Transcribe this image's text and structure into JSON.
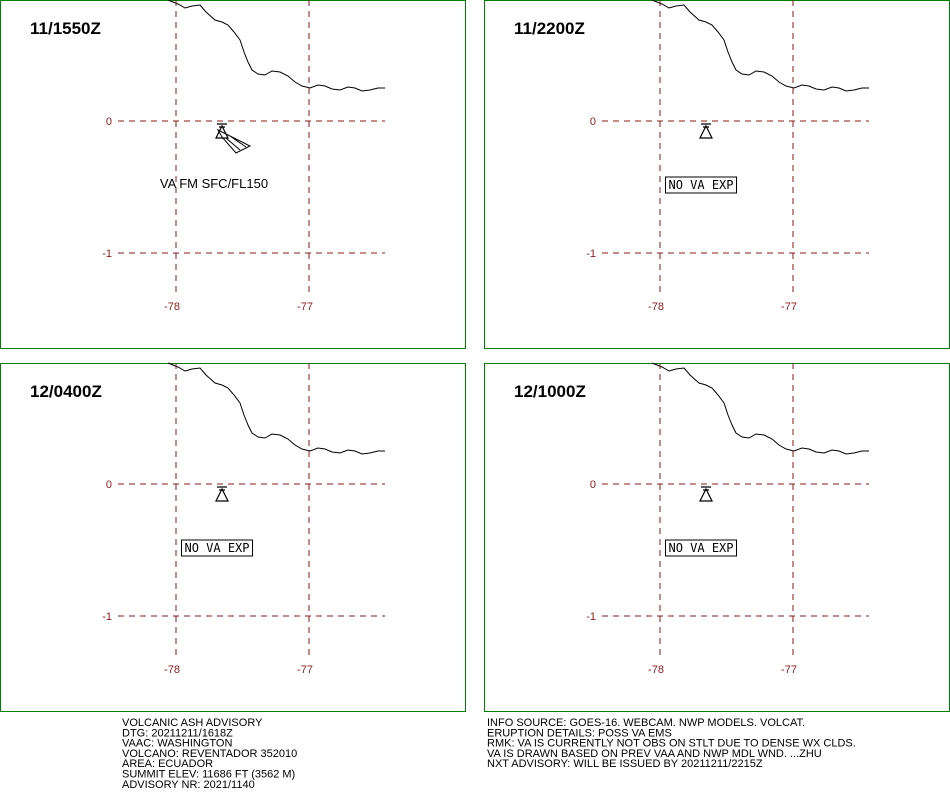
{
  "panels": [
    {
      "time": "11/1550Z",
      "annotation": "VA FM SFC/FL150"
    },
    {
      "time": "11/2200Z",
      "annotation": "NO VA EXP"
    },
    {
      "time": "12/0400Z",
      "annotation": "NO VA EXP"
    },
    {
      "time": "12/1000Z",
      "annotation": "NO VA EXP"
    }
  ],
  "lat_labels": [
    0,
    -1
  ],
  "lon_labels": [
    -78,
    -77
  ],
  "advisory_left": [
    "VOLCANIC ASH ADVISORY",
    "DTG: 20211211/1618Z",
    "VAAC: WASHINGTON",
    "VOLCANO: REVENTADOR 352010",
    "AREA: ECUADOR",
    "SUMMIT ELEV: 11686 FT (3562 M)",
    "ADVISORY NR: 2021/1140"
  ],
  "advisory_right": [
    "INFO SOURCE: GOES-16. WEBCAM. NWP MODELS. VOLCAT.",
    "ERUPTION DETAILS: POSS VA EMS",
    "RMK: VA IS CURRENTLY NOT OBS ON STLT DUE TO DENSE WX CLDS.",
    "VA IS DRAWN BASED ON PREV VAA AND NWP MDL WND. ...ZHU",
    "NXT ADVISORY: WILL BE ISSUED BY 20211211/2215Z"
  ]
}
